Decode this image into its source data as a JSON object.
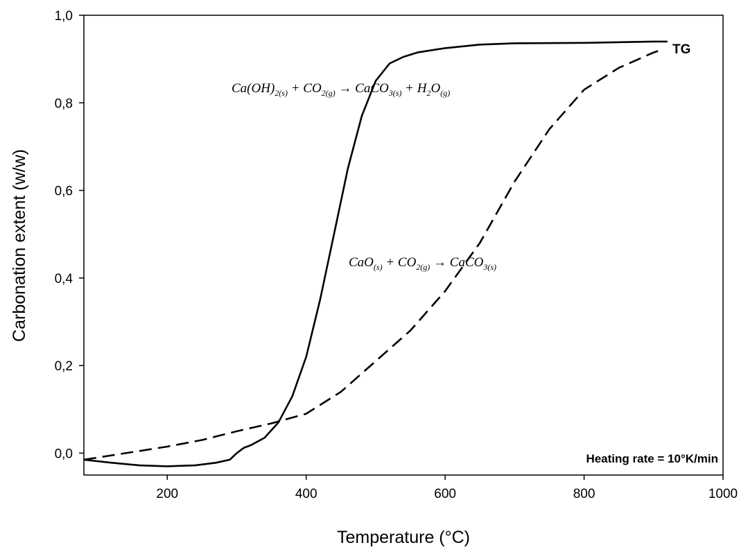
{
  "chart_data": {
    "type": "line",
    "xlabel": "Temperature (°C)",
    "ylabel": "Carbonation extent (w/w)",
    "xlim": [
      80,
      1000
    ],
    "ylim": [
      -0.05,
      1.0
    ],
    "xticks": [
      200,
      400,
      600,
      800,
      1000
    ],
    "xtick_labels": [
      "200",
      "400",
      "600",
      "800",
      "1000"
    ],
    "yticks": [
      0.0,
      0.2,
      0.4,
      0.6,
      0.8,
      1.0
    ],
    "ytick_labels": [
      "0,0",
      "0,2",
      "0,4",
      "0,6",
      "0,8",
      "1,0"
    ],
    "grid": false,
    "series": [
      {
        "style": "solid",
        "color": "#000000",
        "x": [
          80,
          120,
          160,
          200,
          240,
          270,
          290,
          300,
          310,
          320,
          340,
          360,
          380,
          400,
          420,
          440,
          460,
          480,
          500,
          520,
          540,
          560,
          600,
          650,
          700,
          800,
          900,
          920
        ],
        "y": [
          -0.015,
          -0.022,
          -0.028,
          -0.03,
          -0.028,
          -0.022,
          -0.015,
          0.0,
          0.012,
          0.018,
          0.035,
          0.07,
          0.13,
          0.22,
          0.35,
          0.5,
          0.65,
          0.77,
          0.85,
          0.89,
          0.905,
          0.915,
          0.925,
          0.933,
          0.936,
          0.937,
          0.94,
          0.94
        ]
      },
      {
        "style": "dashed",
        "color": "#000000",
        "x": [
          80,
          120,
          160,
          200,
          250,
          300,
          350,
          400,
          450,
          500,
          550,
          600,
          650,
          700,
          750,
          800,
          850,
          900,
          910
        ],
        "y": [
          -0.015,
          -0.005,
          0.005,
          0.015,
          0.03,
          0.05,
          0.068,
          0.09,
          0.14,
          0.21,
          0.28,
          0.37,
          0.48,
          0.62,
          0.74,
          0.83,
          0.88,
          0.915,
          0.92
        ]
      }
    ],
    "annotations": {
      "tg": "TG",
      "heating_rate": "Heating rate = 10°K/min",
      "eq1": {
        "parts": [
          {
            "t": "Ca(OH)"
          },
          {
            "t": "2(s)",
            "sub": true
          },
          {
            "t": " + CO"
          },
          {
            "t": "2(g)",
            "sub": true
          },
          {
            "t": " → CaCO"
          },
          {
            "t": "3(s)",
            "sub": true
          },
          {
            "t": " + H"
          },
          {
            "t": "2",
            "sub": true
          },
          {
            "t": "O"
          },
          {
            "t": "(g)",
            "sub": true
          }
        ]
      },
      "eq2": {
        "parts": [
          {
            "t": "CaO"
          },
          {
            "t": "(s)",
            "sub": true
          },
          {
            "t": " + CO"
          },
          {
            "t": "2(g)",
            "sub": true
          },
          {
            "t": " → CaCO"
          },
          {
            "t": "3(s)",
            "sub": true
          }
        ]
      }
    }
  }
}
